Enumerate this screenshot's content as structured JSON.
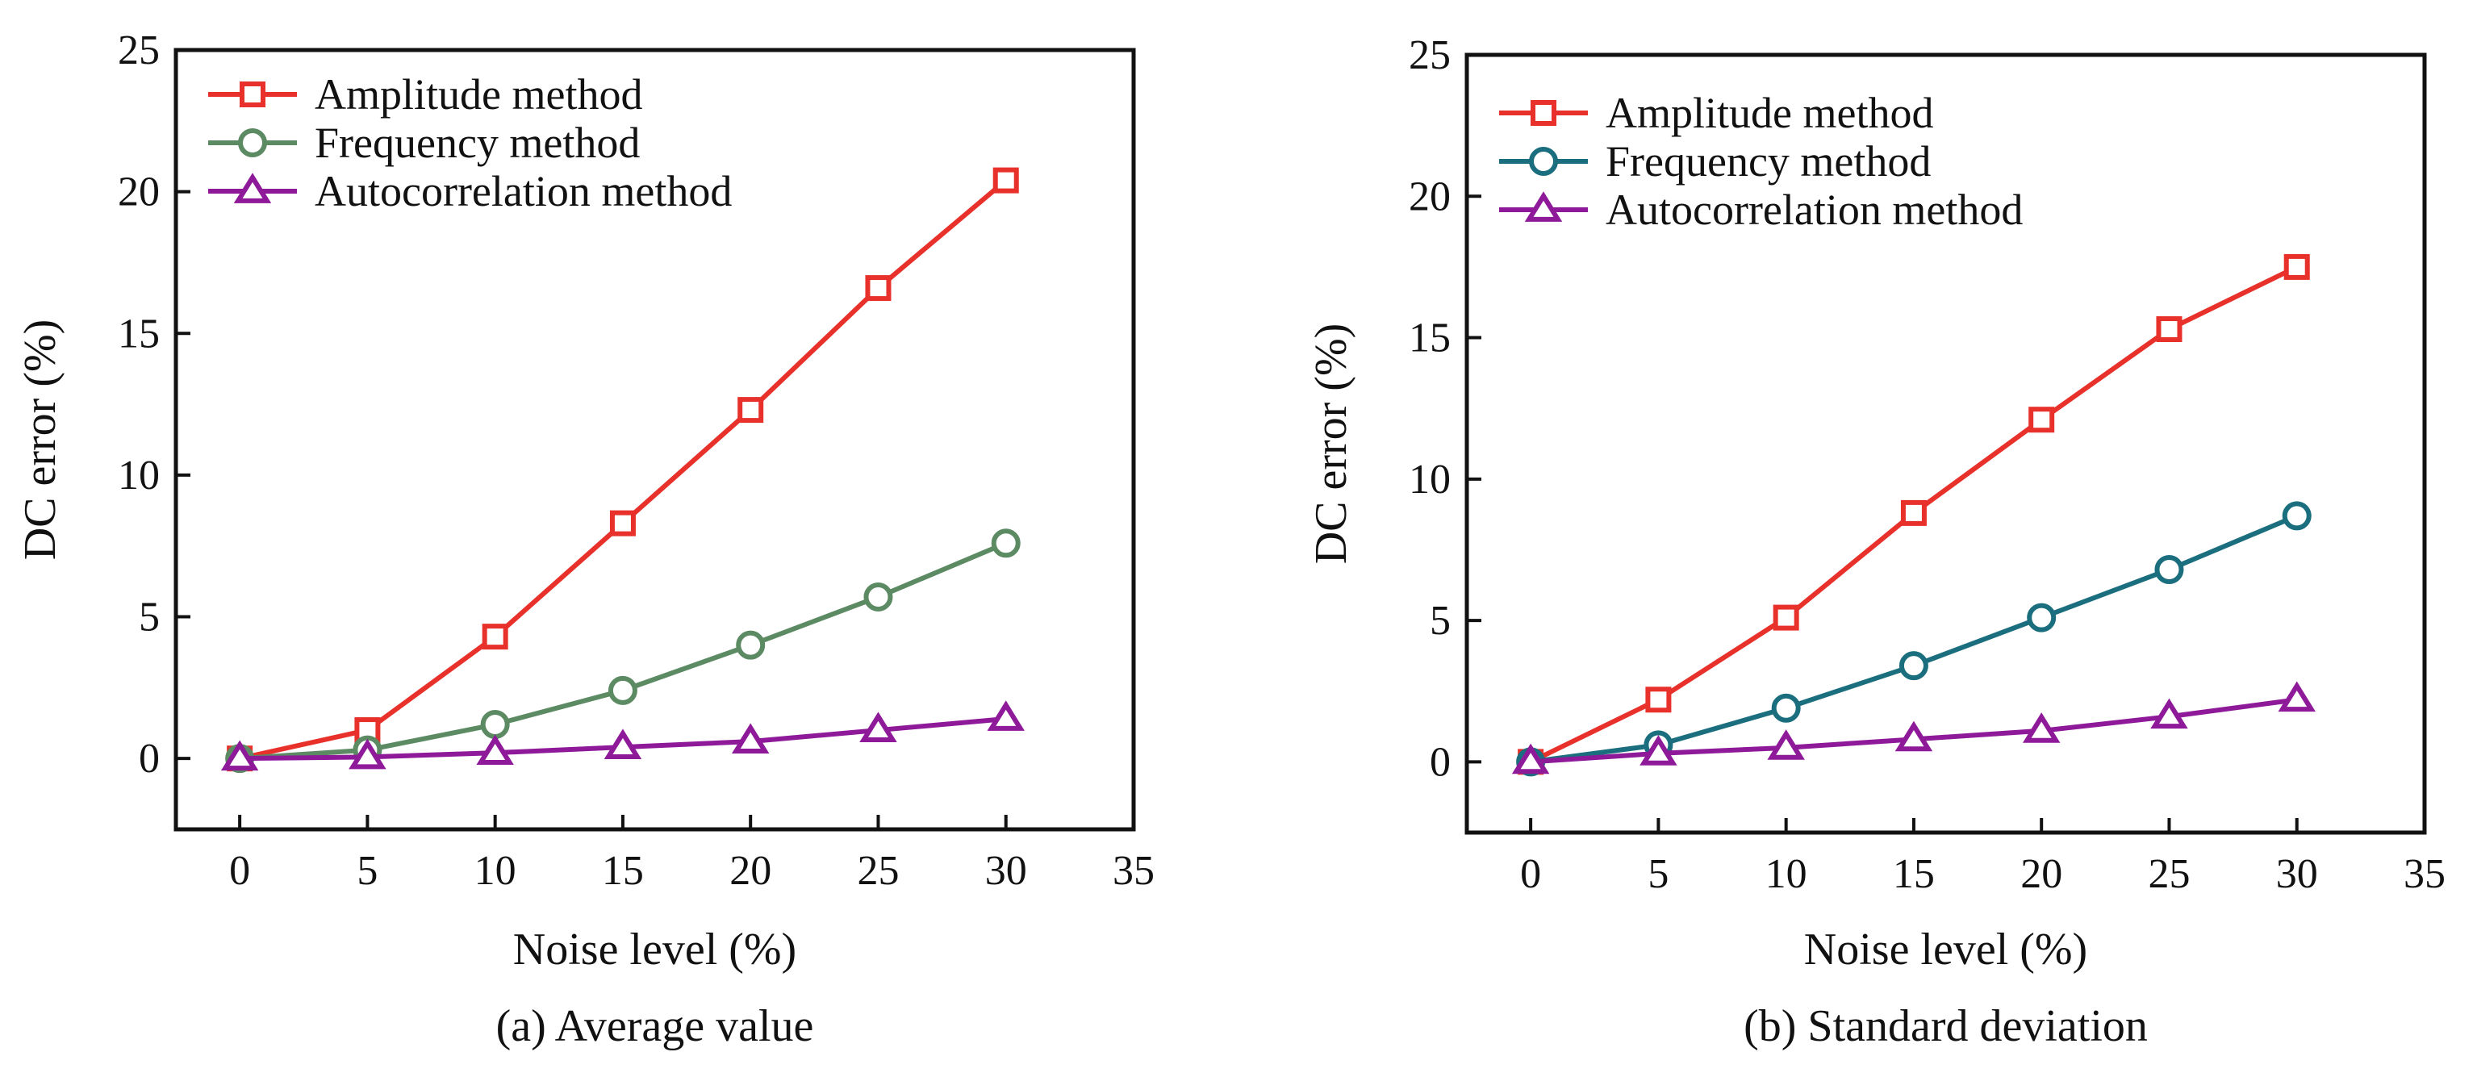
{
  "chart_data": [
    {
      "type": "line",
      "caption": "(a) Average value",
      "xlabel": "Noise level (%)",
      "ylabel": "DC error (%)",
      "xlim": [
        -2.5,
        35
      ],
      "ylim": [
        -2.5,
        25
      ],
      "xticks": [
        "0",
        "5",
        "10",
        "15",
        "20",
        "25",
        "30",
        "35"
      ],
      "yticks": [
        "0",
        "5",
        "10",
        "15",
        "20",
        "25"
      ],
      "legend_position": "top-left",
      "x": [
        0,
        5,
        10,
        15,
        20,
        25,
        30
      ],
      "series": [
        {
          "name": "Amplitude method",
          "marker": "square",
          "color": "#e8312a",
          "values": [
            0,
            1.0,
            4.3,
            8.3,
            12.3,
            16.6,
            20.4
          ]
        },
        {
          "name": "Frequency method",
          "marker": "circle",
          "color": "#5b8a63",
          "values": [
            0,
            0.3,
            1.2,
            2.4,
            4.0,
            5.7,
            7.6
          ]
        },
        {
          "name": "Autocorrelation method",
          "marker": "triangle",
          "color": "#8e1a9a",
          "values": [
            0,
            0.05,
            0.2,
            0.4,
            0.6,
            1.0,
            1.4
          ]
        }
      ]
    },
    {
      "type": "line",
      "caption": "(b) Standard deviation",
      "xlabel": "Noise level (%)",
      "ylabel": "DC error (%)",
      "xlim": [
        -2.5,
        35
      ],
      "ylim": [
        -2.5,
        25
      ],
      "xticks": [
        "0",
        "5",
        "10",
        "15",
        "20",
        "25",
        "30",
        "35"
      ],
      "yticks": [
        "0",
        "5",
        "10",
        "15",
        "20",
        "25"
      ],
      "legend_position": "top-left",
      "x": [
        0,
        5,
        10,
        15,
        20,
        25,
        30
      ],
      "series": [
        {
          "name": "Amplitude method",
          "marker": "square",
          "color": "#e8312a",
          "values": [
            0,
            2.2,
            5.1,
            8.8,
            12.1,
            15.3,
            17.5
          ]
        },
        {
          "name": "Frequency method",
          "marker": "circle",
          "color": "#1a6e7e",
          "values": [
            0,
            0.6,
            1.9,
            3.4,
            5.1,
            6.8,
            8.7
          ]
        },
        {
          "name": "Autocorrelation method",
          "marker": "triangle",
          "color": "#8e1a9a",
          "values": [
            0,
            0.3,
            0.5,
            0.8,
            1.1,
            1.6,
            2.2
          ]
        }
      ]
    }
  ]
}
